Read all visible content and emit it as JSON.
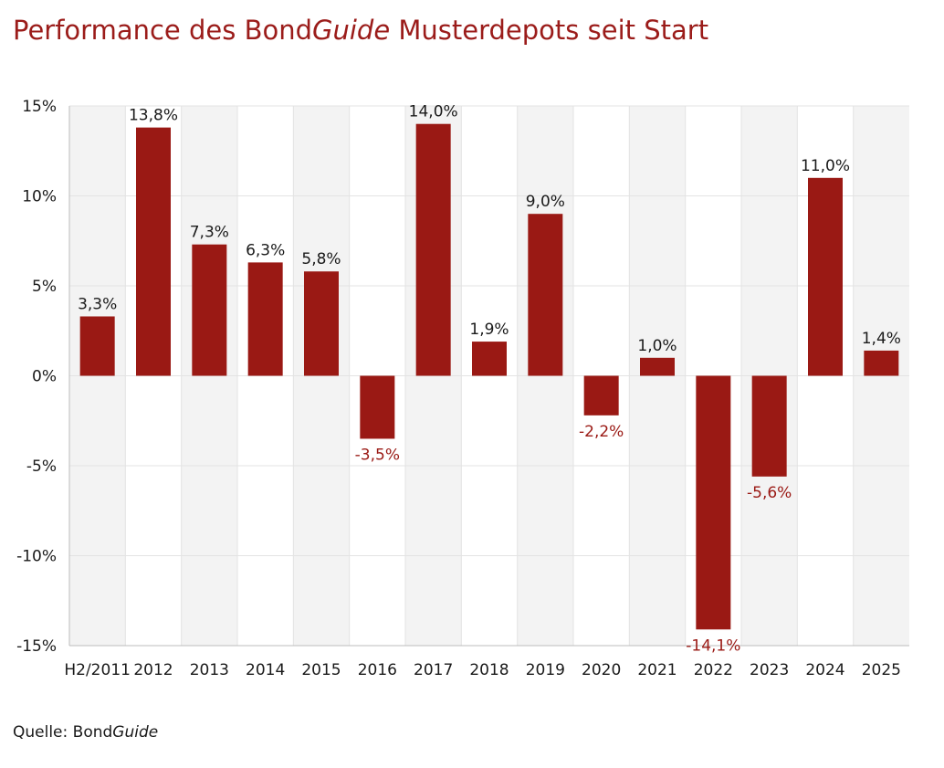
{
  "header": {
    "title_part1": "Performance des Bond",
    "title_italic": "Guide",
    "title_part2": " Musterdepots seit Start"
  },
  "footer": {
    "source_prefix": "Quelle: Bond",
    "source_italic": "Guide"
  },
  "colors": {
    "bar": "#9a1914",
    "title": "#9b1c1a",
    "negative_label": "#9a1914",
    "positive_label": "#1a1a1a",
    "band": "#f3f3f3"
  },
  "chart_data": {
    "type": "bar",
    "categories": [
      "H2/2011",
      "2012",
      "2013",
      "2014",
      "2015",
      "2016",
      "2017",
      "2018",
      "2019",
      "2020",
      "2021",
      "2022",
      "2023",
      "2024",
      "2025"
    ],
    "values": [
      3.3,
      13.8,
      7.3,
      6.3,
      5.8,
      -3.5,
      14.0,
      1.9,
      9.0,
      -2.2,
      1.0,
      -14.1,
      -5.6,
      11.0,
      1.4
    ],
    "data_labels": [
      "3,3%",
      "13,8%",
      "7,3%",
      "6,3%",
      "5,8%",
      "-3,5%",
      "14,0%",
      "1,9%",
      "9,0%",
      "-2,2%",
      "1,0%",
      "-14,1%",
      "-5,6%",
      "11,0%",
      "1,4%"
    ],
    "y_ticks": [
      15,
      10,
      5,
      0,
      -5,
      -10,
      -15
    ],
    "y_tick_labels": [
      "15%",
      "10%",
      "5%",
      "0%",
      "-5%",
      "-10%",
      "-15%"
    ],
    "ylim": [
      -15,
      15
    ],
    "shaded_categories": [
      "H2/2011",
      "2013",
      "2015",
      "2017",
      "2019",
      "2021",
      "2023",
      "2025"
    ],
    "grid": true,
    "legend": "none"
  }
}
